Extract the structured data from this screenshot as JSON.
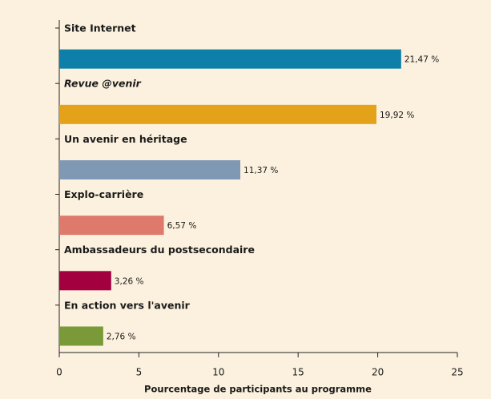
{
  "chart_data": {
    "type": "bar",
    "orientation": "horizontal",
    "x_label": "Pourcentage de participants au programme",
    "categories": [
      "Site Internet",
      "Revue @venir",
      "Un avenir en héritage",
      "Explo-carrière",
      "Ambassadeurs du postsecondaire",
      "En action vers l'avenir"
    ],
    "values": [
      21.47,
      19.92,
      11.37,
      6.57,
      3.26,
      2.76
    ],
    "value_labels": [
      "21,47 %",
      "19,92 %",
      "11,37 %",
      "6,57 %",
      "3,26 %",
      "2,76 %"
    ],
    "colors": [
      "#0d7fa8",
      "#e3a21a",
      "#7f99b5",
      "#de7a6c",
      "#a3003f",
      "#7a9a3a"
    ],
    "xlim": [
      0,
      25
    ],
    "xticks": [
      0,
      5,
      10,
      15,
      20,
      25
    ]
  }
}
